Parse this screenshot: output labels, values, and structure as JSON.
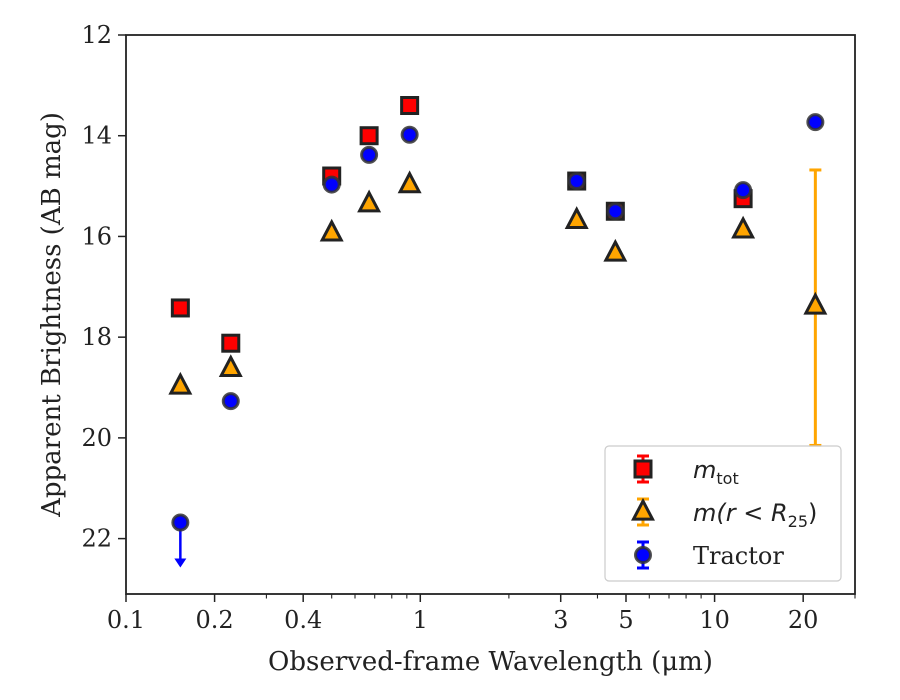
{
  "chart_data": {
    "type": "scatter",
    "xlabel": "Observed-frame Wavelength (μm)",
    "ylabel": "Apparent Brightness (AB mag)",
    "x_scale": "log",
    "xlim": [
      0.1,
      30
    ],
    "ylim": [
      23.1,
      12
    ],
    "y_inverted": true,
    "x_ticks": [
      0.1,
      0.2,
      0.4,
      1,
      3,
      5,
      10,
      20
    ],
    "x_tick_labels": [
      "0.1",
      "0.2",
      "0.4",
      "1",
      "3",
      "5",
      "10",
      "20"
    ],
    "y_ticks": [
      12,
      14,
      16,
      18,
      20,
      22
    ],
    "y_tick_labels": [
      "12",
      "14",
      "16",
      "18",
      "20",
      "22"
    ],
    "legend_position": "lower-right",
    "series": [
      {
        "name": "m_tot",
        "legend_main": "m",
        "legend_sub": "tot",
        "marker": "square",
        "color": "#ff0000",
        "edge_color": "#222222",
        "points": [
          {
            "x": 0.153,
            "y": 17.42
          },
          {
            "x": 0.227,
            "y": 18.12
          },
          {
            "x": 0.5,
            "y": 14.8
          },
          {
            "x": 0.67,
            "y": 14.0
          },
          {
            "x": 0.92,
            "y": 13.4
          },
          {
            "x": 3.4,
            "y": 14.9
          },
          {
            "x": 4.6,
            "y": 15.5
          },
          {
            "x": 12.5,
            "y": 15.25
          }
        ]
      },
      {
        "name": "m(r < R25)",
        "legend_main": "m",
        "legend_paren": "(r < R",
        "legend_sub": "25",
        "legend_close": ")",
        "marker": "triangle",
        "color": "#ffa500",
        "edge_color": "#222222",
        "points": [
          {
            "x": 0.153,
            "y": 18.97
          },
          {
            "x": 0.227,
            "y": 18.62
          },
          {
            "x": 0.5,
            "y": 15.93
          },
          {
            "x": 0.67,
            "y": 15.35
          },
          {
            "x": 0.92,
            "y": 14.97
          },
          {
            "x": 3.4,
            "y": 15.68
          },
          {
            "x": 4.6,
            "y": 16.33
          },
          {
            "x": 12.5,
            "y": 15.87
          },
          {
            "x": 22.0,
            "y": 17.38,
            "err_low": 14.68,
            "err_high": 20.15
          }
        ]
      },
      {
        "name": "Tractor",
        "legend_main": "Tractor",
        "marker": "circle",
        "color": "#0000ff",
        "edge_color": "#333333",
        "points": [
          {
            "x": 0.153,
            "y": 21.68,
            "upper_limit": true
          },
          {
            "x": 0.227,
            "y": 19.27
          },
          {
            "x": 0.5,
            "y": 14.97
          },
          {
            "x": 0.67,
            "y": 14.38
          },
          {
            "x": 0.92,
            "y": 13.98
          },
          {
            "x": 3.4,
            "y": 14.9
          },
          {
            "x": 4.6,
            "y": 15.5
          },
          {
            "x": 12.5,
            "y": 15.08
          },
          {
            "x": 22.0,
            "y": 13.73
          }
        ]
      }
    ]
  }
}
